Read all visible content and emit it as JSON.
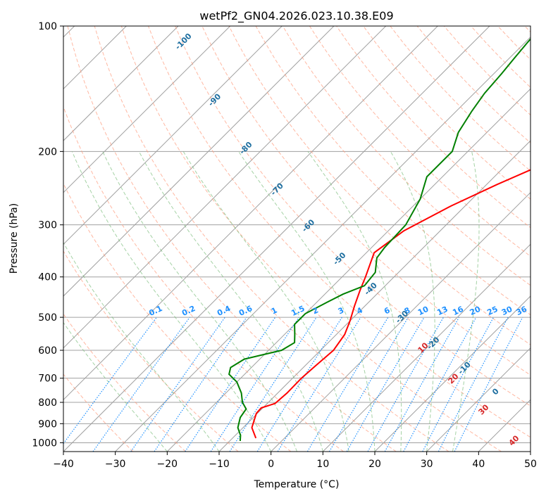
{
  "chart_data": {
    "type": "line",
    "title": "wetPf2_GN04.2026.023.10.38.E09",
    "xlabel": "Temperature (°C)",
    "ylabel": "Pressure (hPa)",
    "xlim": [
      -40,
      50
    ],
    "ylim": [
      1050,
      100
    ],
    "y_scale": "log",
    "grid": true,
    "x_ticks": [
      -40,
      -30,
      -20,
      -10,
      0,
      10,
      20,
      30,
      40,
      50
    ],
    "y_ticks": [
      1000,
      900,
      800,
      700,
      600,
      500,
      400,
      300,
      200,
      100
    ],
    "series": [
      {
        "color": "#ff0000",
        "points": [
          [
            -5.5,
            975
          ],
          [
            -8.3,
            920
          ],
          [
            -10.2,
            850
          ],
          [
            -10.3,
            825
          ],
          [
            -8.5,
            805
          ],
          [
            -8.2,
            760
          ],
          [
            -8.3,
            700
          ],
          [
            -8.0,
            655
          ],
          [
            -7.5,
            600
          ],
          [
            -8.4,
            550
          ],
          [
            -10.0,
            510
          ],
          [
            -12.0,
            470
          ],
          [
            -14.0,
            430
          ],
          [
            -15.5,
            400
          ],
          [
            -18.5,
            350
          ],
          [
            -17.0,
            310
          ],
          [
            -12.7,
            270
          ],
          [
            -8.0,
            240
          ],
          [
            -2.0,
            210
          ],
          [
            3.0,
            185
          ],
          [
            8.0,
            160
          ],
          [
            11.0,
            145
          ],
          [
            13.0,
            132
          ],
          [
            14.0,
            120
          ],
          [
            15.7,
            110
          ],
          [
            16.7,
            100
          ]
        ]
      },
      {
        "color": "#008000",
        "points": [
          [
            -8.0,
            990
          ],
          [
            -9.0,
            960
          ],
          [
            -11.0,
            920
          ],
          [
            -12.5,
            870
          ],
          [
            -13.0,
            830
          ],
          [
            -15.0,
            800
          ],
          [
            -17.0,
            760
          ],
          [
            -20.0,
            715
          ],
          [
            -23.0,
            685
          ],
          [
            -24.0,
            660
          ],
          [
            -23.0,
            630
          ],
          [
            -17.5,
            600
          ],
          [
            -16.5,
            575
          ],
          [
            -18.0,
            550
          ],
          [
            -20.0,
            520
          ],
          [
            -20.0,
            490
          ],
          [
            -18.0,
            460
          ],
          [
            -16.5,
            440
          ],
          [
            -14.0,
            420
          ],
          [
            -14.5,
            390
          ],
          [
            -17.0,
            360
          ],
          [
            -17.5,
            340
          ],
          [
            -17.8,
            300
          ],
          [
            -20.0,
            260
          ],
          [
            -23.0,
            230
          ],
          [
            -23.0,
            200
          ],
          [
            -25.5,
            180
          ],
          [
            -27.0,
            160
          ],
          [
            -28.0,
            145
          ],
          [
            -28.5,
            130
          ],
          [
            -29.0,
            120
          ],
          [
            -29.5,
            110
          ],
          [
            -30.0,
            100
          ]
        ]
      }
    ],
    "dry_adiabat_labels": [
      "-100",
      "-90",
      "-80",
      "-70",
      "-60",
      "-50",
      "-40",
      "-30",
      "-20",
      "-10",
      "0"
    ],
    "moist_adiabat_labels": [
      "10",
      "20",
      "30",
      "40"
    ],
    "mixing_ratio_labels": [
      "0.1",
      "0.2",
      "0.4",
      "0.6",
      "1",
      "1.5",
      "2",
      "3",
      "4",
      "6",
      "8",
      "10",
      "13",
      "16",
      "20",
      "25",
      "30",
      "36"
    ]
  },
  "colors": {
    "temperature": "#ff0000",
    "dewpoint": "#008000",
    "dry_adiabat": "#ff9a7a",
    "moist_adiabat": "#7fbf7f",
    "mixing_ratio": "#1e90ff",
    "isotherm": "#a0a0a0",
    "isobar": "#a0a0a0"
  }
}
